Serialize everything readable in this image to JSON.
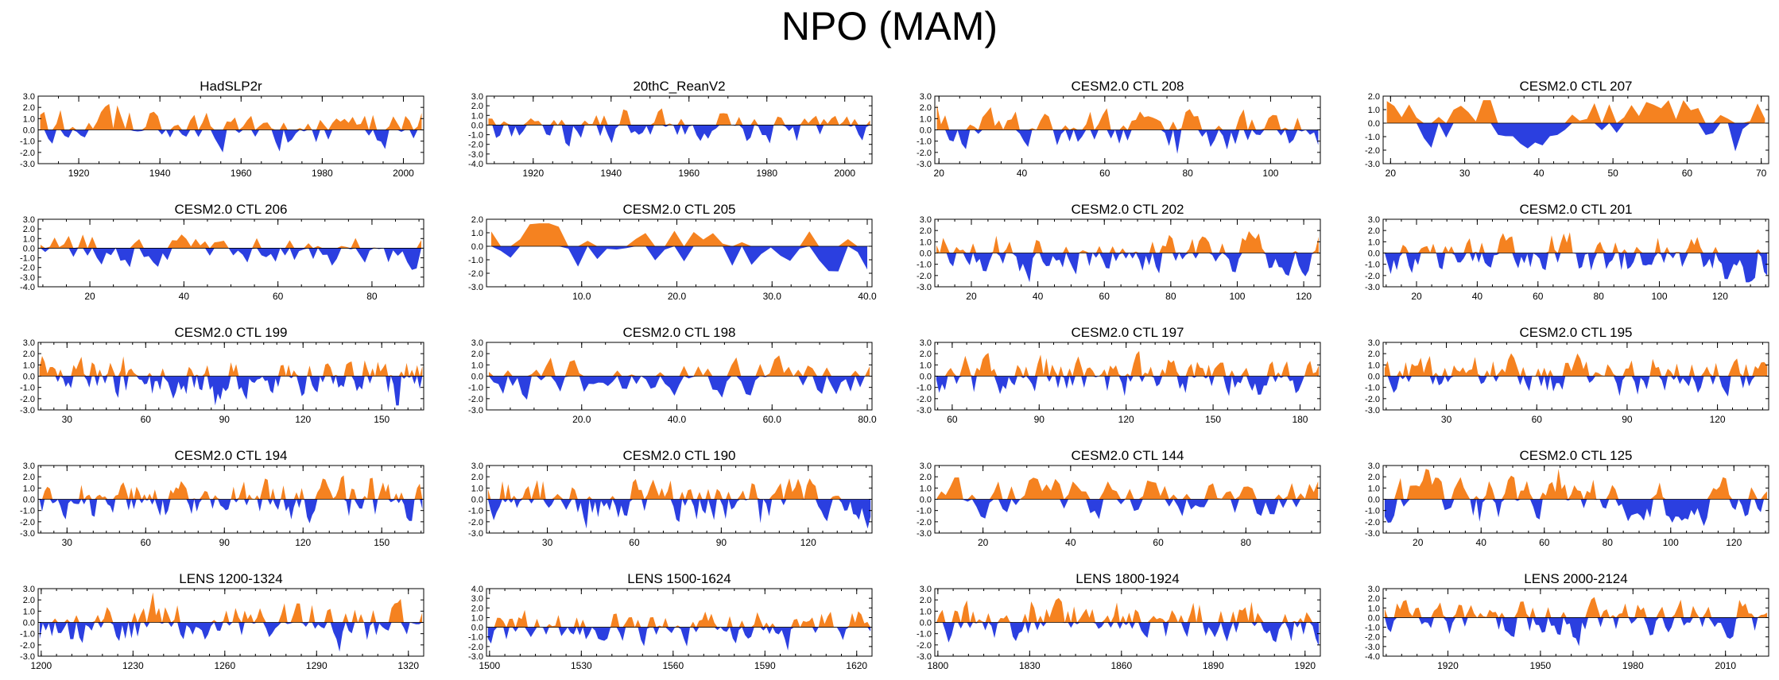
{
  "title": "NPO (MAM)",
  "colors": {
    "positive": "#f58220",
    "negative": "#2b3fe0",
    "axis": "#000000"
  },
  "chart_data": [
    {
      "type": "area",
      "title": "HadSLP2r",
      "xlim": [
        1910,
        2005
      ],
      "xticks": [
        1920,
        1940,
        1960,
        1980,
        2000
      ],
      "ylim": [
        -3,
        3
      ],
      "yticks": [
        "3.0",
        "2.0",
        "1.0",
        "0.0",
        "-1.0",
        "-2.0",
        "-3.0"
      ],
      "n": 95,
      "seed": 11,
      "amp": 1.0
    },
    {
      "type": "area",
      "title": "20thC_ReanV2",
      "xlim": [
        1908,
        2007
      ],
      "xticks": [
        1920,
        1940,
        1960,
        1980,
        2000
      ],
      "ylim": [
        -4,
        3
      ],
      "yticks": [
        "3.0",
        "2.0",
        "1.0",
        "0.0",
        "-1.0",
        "-2.0",
        "-3.0",
        "-4.0"
      ],
      "n": 100,
      "seed": 23,
      "amp": 1.0
    },
    {
      "type": "area",
      "title": "CESM2.0 CTL 208",
      "xlim": [
        19,
        112
      ],
      "xticks": [
        20,
        40,
        60,
        80,
        100
      ],
      "ylim": [
        -3,
        3
      ],
      "yticks": [
        "3.0",
        "2.0",
        "1.0",
        "0.0",
        "-1.0",
        "-2.0",
        "-3.0"
      ],
      "n": 93,
      "seed": 37,
      "amp": 1.0
    },
    {
      "type": "area",
      "title": "CESM2.0 CTL 207",
      "xlim": [
        19,
        71
      ],
      "xticks": [
        20,
        30,
        40,
        50,
        60,
        70
      ],
      "ylim": [
        -3,
        2
      ],
      "yticks": [
        "2.0",
        "1.0",
        "0.0",
        "-1.0",
        "-2.0",
        "-3.0"
      ],
      "n": 52,
      "seed": 41,
      "amp": 1.0
    },
    {
      "type": "area",
      "title": "CESM2.0 CTL 206",
      "xlim": [
        9,
        91
      ],
      "xticks": [
        20,
        40,
        60,
        80
      ],
      "ylim": [
        -4,
        3
      ],
      "yticks": [
        "3.0",
        "2.0",
        "1.0",
        "0.0",
        "-1.0",
        "-2.0",
        "-3.0",
        "-4.0"
      ],
      "n": 82,
      "seed": 53,
      "amp": 1.0
    },
    {
      "type": "area",
      "title": "CESM2.0 CTL 205",
      "xlim": [
        0,
        40.5
      ],
      "xticks": [
        10,
        20,
        30,
        40
      ],
      "xfmt": 1,
      "ylim": [
        -3,
        2
      ],
      "yticks": [
        "2.0",
        "1.0",
        "0.0",
        "-1.0",
        "-2.0",
        "-3.0"
      ],
      "n": 40,
      "seed": 67,
      "amp": 1.0
    },
    {
      "type": "area",
      "title": "CESM2.0 CTL 202",
      "xlim": [
        9,
        125
      ],
      "xticks": [
        20,
        40,
        60,
        80,
        100,
        120
      ],
      "ylim": [
        -3,
        3
      ],
      "yticks": [
        "3.0",
        "2.0",
        "1.0",
        "0.0",
        "-1.0",
        "-2.0",
        "-3.0"
      ],
      "n": 116,
      "seed": 71,
      "amp": 1.0
    },
    {
      "type": "area",
      "title": "CESM2.0 CTL 201",
      "xlim": [
        9,
        136
      ],
      "xticks": [
        20,
        40,
        60,
        80,
        100,
        120
      ],
      "ylim": [
        -3,
        3
      ],
      "yticks": [
        "3.0",
        "2.0",
        "1.0",
        "0.0",
        "-1.0",
        "-2.0",
        "-3.0"
      ],
      "n": 127,
      "seed": 83,
      "amp": 1.0
    },
    {
      "type": "area",
      "title": "CESM2.0 CTL 199",
      "xlim": [
        19,
        166
      ],
      "xticks": [
        30,
        60,
        90,
        120,
        150
      ],
      "ylim": [
        -3,
        3
      ],
      "yticks": [
        "3.0",
        "2.0",
        "1.0",
        "0.0",
        "-1.0",
        "-2.0",
        "-3.0"
      ],
      "n": 147,
      "seed": 97,
      "amp": 1.0
    },
    {
      "type": "area",
      "title": "CESM2.0 CTL 198",
      "xlim": [
        0,
        81
      ],
      "xticks": [
        20,
        40,
        60,
        80
      ],
      "xfmt": 1,
      "ylim": [
        -3,
        3
      ],
      "yticks": [
        "3.0",
        "2.0",
        "1.0",
        "0.0",
        "-1.0",
        "-2.0",
        "-3.0"
      ],
      "n": 81,
      "seed": 101,
      "amp": 1.0
    },
    {
      "type": "area",
      "title": "CESM2.0 CTL 197",
      "xlim": [
        54,
        187
      ],
      "xticks": [
        60,
        90,
        120,
        150,
        180
      ],
      "ylim": [
        -3,
        3
      ],
      "yticks": [
        "3.0",
        "2.0",
        "1.0",
        "0.0",
        "-1.0",
        "-2.0",
        "-3.0"
      ],
      "n": 133,
      "seed": 113,
      "amp": 1.0
    },
    {
      "type": "area",
      "title": "CESM2.0 CTL 195",
      "xlim": [
        9,
        137
      ],
      "xticks": [
        30,
        60,
        90,
        120
      ],
      "ylim": [
        -3,
        3
      ],
      "yticks": [
        "3.0",
        "2.0",
        "1.0",
        "0.0",
        "-1.0",
        "-2.0",
        "-3.0"
      ],
      "n": 128,
      "seed": 127,
      "amp": 1.0
    },
    {
      "type": "area",
      "title": "CESM2.0 CTL 194",
      "xlim": [
        19,
        166
      ],
      "xticks": [
        30,
        60,
        90,
        120,
        150
      ],
      "ylim": [
        -3,
        3
      ],
      "yticks": [
        "3.0",
        "2.0",
        "1.0",
        "0.0",
        "-1.0",
        "-2.0",
        "-3.0"
      ],
      "n": 147,
      "seed": 131,
      "amp": 1.0
    },
    {
      "type": "area",
      "title": "CESM2.0 CTL 190",
      "xlim": [
        9,
        142
      ],
      "xticks": [
        30,
        60,
        90,
        120
      ],
      "ylim": [
        -3,
        3
      ],
      "yticks": [
        "3.0",
        "2.0",
        "1.0",
        "0.0",
        "-1.0",
        "-2.0",
        "-3.0"
      ],
      "n": 133,
      "seed": 149,
      "amp": 1.0
    },
    {
      "type": "area",
      "title": "CESM2.0 CTL 144",
      "xlim": [
        9,
        97
      ],
      "xticks": [
        20,
        40,
        60,
        80
      ],
      "ylim": [
        -3,
        3
      ],
      "yticks": [
        "3.0",
        "2.0",
        "1.0",
        "0.0",
        "-1.0",
        "-2.0",
        "-3.0"
      ],
      "n": 88,
      "seed": 157,
      "amp": 1.0
    },
    {
      "type": "area",
      "title": "CESM2.0 CTL 125",
      "xlim": [
        9,
        131
      ],
      "xticks": [
        20,
        40,
        60,
        80,
        100,
        120
      ],
      "ylim": [
        -3,
        3
      ],
      "yticks": [
        "3.0",
        "2.0",
        "1.0",
        "0.0",
        "-1.0",
        "-2.0",
        "-3.0"
      ],
      "n": 122,
      "seed": 163,
      "amp": 1.0
    },
    {
      "type": "area",
      "title": "LENS 1200-1324",
      "xlim": [
        1199,
        1325
      ],
      "xticks": [
        1200,
        1230,
        1260,
        1290,
        1320
      ],
      "ylim": [
        -3,
        3
      ],
      "yticks": [
        "3.0",
        "2.0",
        "1.0",
        "0.0",
        "-1.0",
        "-2.0",
        "-3.0"
      ],
      "n": 126,
      "seed": 173,
      "amp": 1.0
    },
    {
      "type": "area",
      "title": "LENS 1500-1624",
      "xlim": [
        1499,
        1625
      ],
      "xticks": [
        1500,
        1530,
        1560,
        1590,
        1620
      ],
      "ylim": [
        -3,
        4
      ],
      "yticks": [
        "4.0",
        "3.0",
        "2.0",
        "1.0",
        "0.0",
        "-1.0",
        "-2.0",
        "-3.0"
      ],
      "n": 126,
      "seed": 181,
      "amp": 1.0
    },
    {
      "type": "area",
      "title": "LENS 1800-1924",
      "xlim": [
        1799,
        1925
      ],
      "xticks": [
        1800,
        1830,
        1860,
        1890,
        1920
      ],
      "ylim": [
        -3,
        3
      ],
      "yticks": [
        "3.0",
        "2.0",
        "1.0",
        "0.0",
        "-1.0",
        "-2.0",
        "-3.0"
      ],
      "n": 126,
      "seed": 191,
      "amp": 1.0
    },
    {
      "type": "area",
      "title": "LENS 2000-2124",
      "xlim": [
        1899,
        2024
      ],
      "xticks": [
        1920,
        1950,
        1980,
        2010
      ],
      "ylim": [
        -4,
        3
      ],
      "yticks": [
        "3.0",
        "2.0",
        "1.0",
        "0.0",
        "-1.0",
        "-2.0",
        "-3.0",
        "-4.0"
      ],
      "n": 125,
      "seed": 197,
      "amp": 1.0
    }
  ]
}
